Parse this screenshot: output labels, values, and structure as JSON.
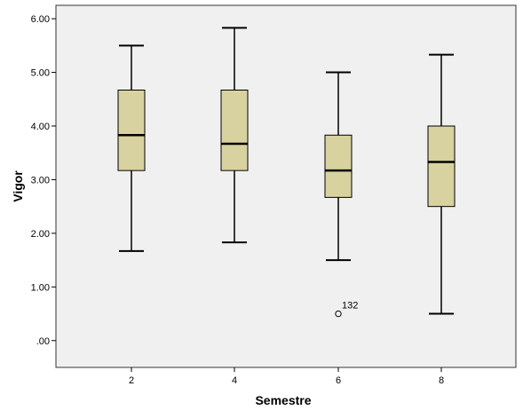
{
  "chart_data": {
    "type": "boxplot",
    "title": "",
    "xlabel": "Semestre",
    "ylabel": "Vigor",
    "categories": [
      "2",
      "4",
      "6",
      "8"
    ],
    "ylim": [
      -0.5,
      6.25
    ],
    "yticks": [
      ".00",
      "1.00",
      "2.00",
      "3.00",
      "4.00",
      "5.00",
      "6.00"
    ],
    "ytick_values": [
      0,
      1,
      2,
      3,
      4,
      5,
      6
    ],
    "grid": false,
    "legend": "none",
    "boxes": [
      {
        "category": "2",
        "whisker_low": 1.67,
        "q1": 3.17,
        "median": 3.83,
        "q3": 4.67,
        "whisker_high": 5.5,
        "outliers": []
      },
      {
        "category": "4",
        "whisker_low": 1.83,
        "q1": 3.17,
        "median": 3.67,
        "q3": 4.67,
        "whisker_high": 5.83,
        "outliers": []
      },
      {
        "category": "6",
        "whisker_low": 1.5,
        "q1": 2.67,
        "median": 3.17,
        "q3": 3.83,
        "whisker_high": 5.0,
        "outliers": [
          {
            "value": 0.5,
            "label": "132"
          }
        ]
      },
      {
        "category": "8",
        "whisker_low": 0.5,
        "q1": 2.5,
        "median": 3.33,
        "q3": 4.0,
        "whisker_high": 5.33,
        "outliers": []
      }
    ],
    "colors": {
      "plot_background": "#f0f0f0",
      "box_fill": "#d8d2a0",
      "stroke": "#000000"
    }
  }
}
